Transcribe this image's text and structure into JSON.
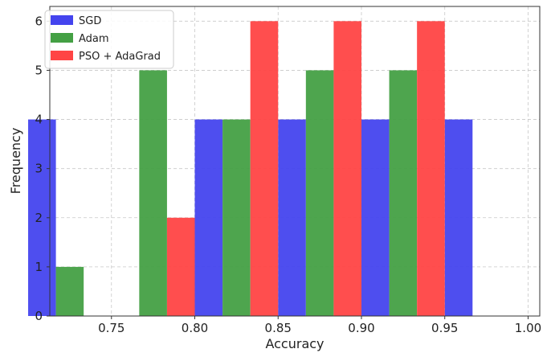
{
  "chart_data": {
    "type": "bar",
    "xlabel": "Accuracy",
    "ylabel": "Frequency",
    "xlim": [
      0.713,
      1.007
    ],
    "ylim": [
      0,
      6.3
    ],
    "xticks": [
      "0.75",
      "0.80",
      "0.85",
      "0.90",
      "0.95",
      "1.00"
    ],
    "yticks": [
      "0",
      "1",
      "2",
      "3",
      "4",
      "5",
      "6"
    ],
    "bin_width": 0.05,
    "bin_starts": [
      0.7,
      0.75,
      0.8,
      0.85,
      0.9,
      0.95
    ],
    "grid": true,
    "legend_position": "top-left",
    "series": [
      {
        "name": "SGD",
        "color": "#4444ee",
        "values": [
          4,
          0,
          4,
          4,
          4,
          4
        ]
      },
      {
        "name": "Adam",
        "color": "#44a044",
        "values": [
          1,
          5,
          4,
          5,
          5,
          0
        ]
      },
      {
        "name": "PSO + AdaGrad",
        "color": "#ff4444",
        "values": [
          0,
          2,
          6,
          6,
          6,
          0
        ]
      }
    ]
  }
}
